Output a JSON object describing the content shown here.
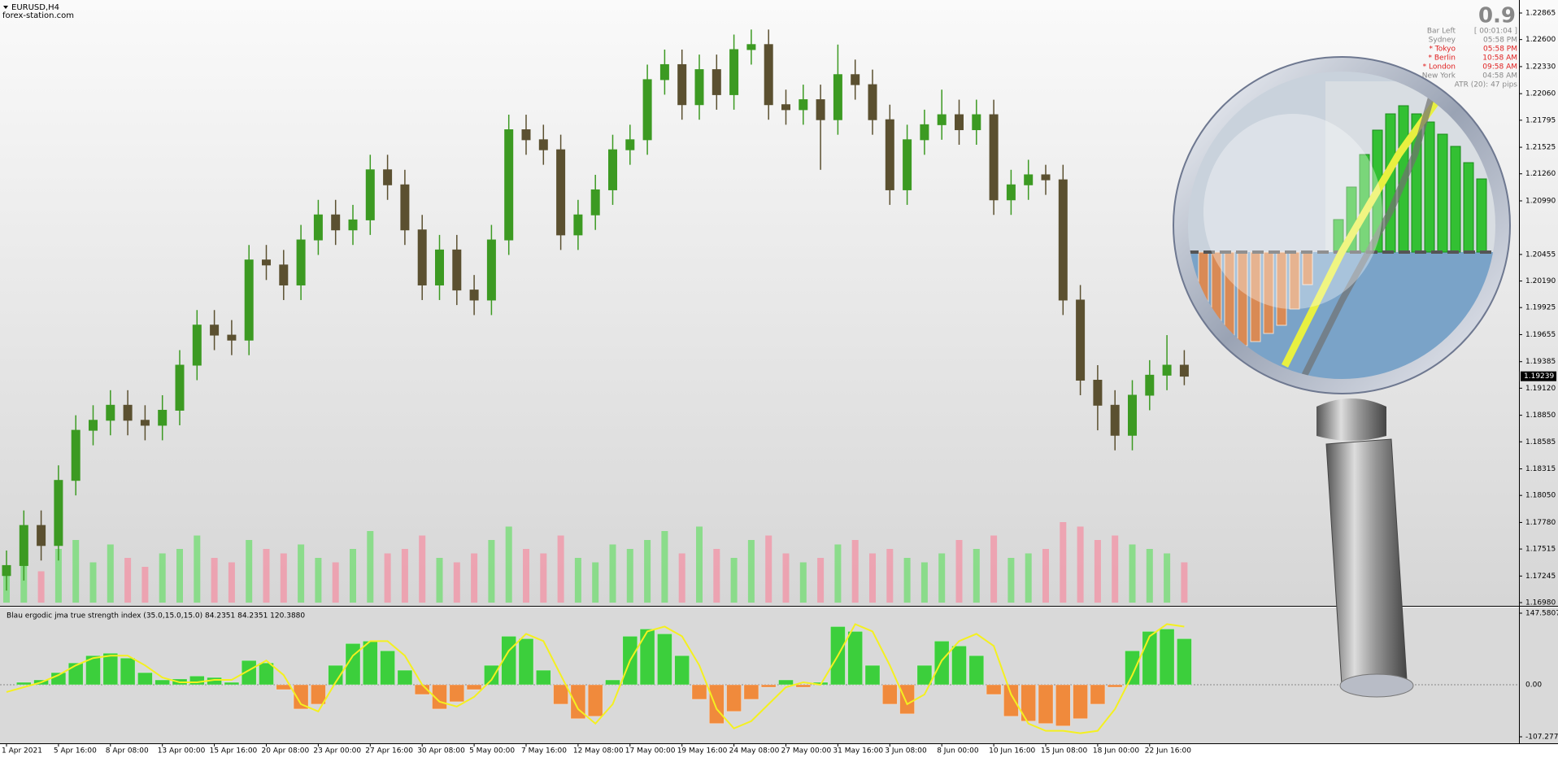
{
  "header": {
    "symbol": "EURUSD,H4",
    "source": "forex-station.com"
  },
  "info_panel": {
    "spread": "0.9",
    "rows": [
      [
        "Bar Left",
        "[ 00:01:04 ]"
      ],
      [
        "Sydney",
        "05:58 PM"
      ],
      [
        "* Tokyo",
        "05:58 PM"
      ],
      [
        "* Berlin",
        "10:58 AM"
      ],
      [
        "* London",
        "09:58 AM"
      ],
      [
        "New York",
        "04:58 AM"
      ]
    ],
    "atr": "ATR (20): 47 pips"
  },
  "chart_data": [
    {
      "type": "candlestick",
      "categories": [
        "1 Apr 2021",
        null,
        null,
        "5 Apr 16:00",
        null,
        null,
        "8 Apr 08:00",
        null,
        null,
        "13 Apr 00:00",
        null,
        null,
        "15 Apr 16:00",
        null,
        null,
        "20 Apr 08:00",
        null,
        null,
        "23 Apr 00:00",
        null,
        null,
        "27 Apr 16:00",
        null,
        null,
        "30 Apr 08:00",
        null,
        null,
        "5 May 00:00",
        null,
        null,
        "7 May 16:00",
        null,
        null,
        "12 May 08:00",
        null,
        null,
        "17 May 00:00",
        null,
        null,
        "19 May 16:00",
        null,
        null,
        "24 May 08:00",
        null,
        null,
        "27 May 00:00",
        null,
        null,
        "31 May 16:00",
        null,
        null,
        "3 Jun 08:00",
        null,
        null,
        "8 Jun 00:00",
        null,
        null,
        "10 Jun 16:00",
        null,
        null,
        "15 Jun 08:00",
        null,
        null,
        "18 Jun 00:00",
        null,
        null,
        "22 Jun 16:00",
        null,
        null
      ],
      "open": [
        1.1725,
        1.1735,
        1.1775,
        1.1755,
        1.182,
        1.187,
        1.188,
        1.1895,
        1.188,
        1.1875,
        1.189,
        1.1935,
        1.1975,
        1.1965,
        1.196,
        1.204,
        1.2035,
        1.2015,
        1.206,
        1.2085,
        1.207,
        1.208,
        1.213,
        1.2115,
        1.207,
        1.2015,
        1.205,
        1.201,
        1.2,
        1.206,
        1.217,
        1.216,
        1.215,
        1.2065,
        1.2085,
        1.211,
        1.215,
        1.216,
        1.222,
        1.2235,
        1.2195,
        1.223,
        1.2205,
        1.225,
        1.2255,
        1.2195,
        1.219,
        1.22,
        1.218,
        1.2225,
        1.2215,
        1.218,
        1.211,
        1.216,
        1.2175,
        1.2185,
        1.217,
        1.2185,
        1.21,
        1.2115,
        1.2125,
        1.212,
        1.2,
        1.192,
        1.1895,
        1.1865,
        1.1905,
        1.1925,
        1.1935
      ],
      "high": [
        1.175,
        1.179,
        1.179,
        1.1835,
        1.1885,
        1.1895,
        1.191,
        1.191,
        1.1895,
        1.1905,
        1.195,
        1.199,
        1.199,
        1.198,
        1.2055,
        1.2055,
        1.205,
        1.2075,
        1.21,
        1.21,
        1.2095,
        1.2145,
        1.2145,
        1.213,
        1.2085,
        1.2065,
        1.2065,
        1.2025,
        1.2075,
        1.2185,
        1.2185,
        1.2175,
        1.2165,
        1.21,
        1.2125,
        1.2165,
        1.2175,
        1.2235,
        1.225,
        1.225,
        1.2245,
        1.2245,
        1.2265,
        1.227,
        1.227,
        1.221,
        1.2215,
        1.2215,
        1.2255,
        1.224,
        1.223,
        1.2195,
        1.2175,
        1.219,
        1.221,
        1.22,
        1.22,
        1.22,
        1.213,
        1.214,
        1.2135,
        1.2135,
        1.2015,
        1.1935,
        1.191,
        1.192,
        1.194,
        1.1965,
        1.195
      ],
      "low": [
        1.171,
        1.172,
        1.174,
        1.174,
        1.1805,
        1.1855,
        1.1865,
        1.1865,
        1.186,
        1.186,
        1.1875,
        1.192,
        1.195,
        1.1945,
        1.1945,
        1.202,
        1.2,
        1.2,
        1.2045,
        1.2055,
        1.2055,
        1.2065,
        1.21,
        1.2055,
        1.2,
        1.2,
        1.1995,
        1.1985,
        1.1985,
        1.2045,
        1.2145,
        1.2135,
        1.205,
        1.205,
        1.207,
        1.2095,
        1.2135,
        1.2145,
        1.2205,
        1.218,
        1.218,
        1.219,
        1.219,
        1.2235,
        1.218,
        1.2175,
        1.2175,
        1.213,
        1.2165,
        1.22,
        1.2165,
        1.2095,
        1.2095,
        1.2145,
        1.216,
        1.2155,
        1.2155,
        1.2085,
        1.2085,
        1.21,
        1.2105,
        1.1985,
        1.1905,
        1.187,
        1.185,
        1.185,
        1.189,
        1.191,
        1.1915
      ],
      "close": [
        1.1735,
        1.1775,
        1.1755,
        1.182,
        1.187,
        1.188,
        1.1895,
        1.188,
        1.1875,
        1.189,
        1.1935,
        1.1975,
        1.1965,
        1.196,
        1.204,
        1.2035,
        1.2015,
        1.206,
        1.2085,
        1.207,
        1.208,
        1.213,
        1.2115,
        1.207,
        1.2015,
        1.205,
        1.201,
        1.2,
        1.206,
        1.217,
        1.216,
        1.215,
        1.2065,
        1.2085,
        1.211,
        1.215,
        1.216,
        1.222,
        1.2235,
        1.2195,
        1.223,
        1.2205,
        1.225,
        1.2255,
        1.2195,
        1.219,
        1.22,
        1.218,
        1.2225,
        1.2215,
        1.218,
        1.211,
        1.216,
        1.2175,
        1.2185,
        1.217,
        1.2185,
        1.21,
        1.2115,
        1.2125,
        1.212,
        1.2,
        1.192,
        1.1895,
        1.1865,
        1.1905,
        1.1925,
        1.1935,
        1.1924
      ],
      "volume": [
        40,
        55,
        35,
        60,
        70,
        45,
        65,
        50,
        40,
        55,
        60,
        75,
        50,
        45,
        70,
        60,
        55,
        65,
        50,
        45,
        60,
        80,
        55,
        60,
        75,
        50,
        45,
        55,
        70,
        85,
        60,
        55,
        75,
        50,
        45,
        65,
        60,
        70,
        80,
        55,
        85,
        60,
        50,
        70,
        75,
        55,
        45,
        50,
        65,
        70,
        55,
        60,
        50,
        45,
        55,
        70,
        60,
        75,
        50,
        55,
        60,
        90,
        85,
        70,
        75,
        65,
        60,
        55,
        45
      ],
      "up_color": "#3c9a22",
      "down_color": "#5b5030",
      "volume_up_color": "#7ddc7d",
      "volume_down_color": "#f09aaa",
      "last_price": 1.19239,
      "ylim": [
        1.1698,
        1.22865
      ],
      "yticks": [
        1.22865,
        {
          "value": 1.226,
          "label": "1.22600"
        },
        {
          "value": 1.2233,
          "label": "1.22330"
        },
        {
          "value": 1.2206,
          "label": "1.22060"
        },
        1.21795,
        1.21525,
        {
          "value": 1.2126,
          "label": "1.21260"
        },
        {
          "value": 1.2099,
          "label": "1.20990"
        },
        1.20455,
        {
          "value": 1.2019,
          "label": "1.20190"
        },
        1.19925,
        1.19655,
        1.19385,
        {
          "value": 1.1912,
          "label": "1.19120"
        },
        {
          "value": 1.1885,
          "label": "1.18850"
        },
        1.18585,
        1.18315,
        {
          "value": 1.1805,
          "label": "1.18050"
        },
        {
          "value": 1.1778,
          "label": "1.17780"
        },
        1.17515,
        1.17245,
        {
          "value": 1.1698,
          "label": "1.16980"
        }
      ]
    },
    {
      "type": "histogram-line",
      "title": "Blau ergodic jma true strength index (35.0,15.0,15.0) 84.2351 84.2351 120.3880",
      "values": [
        0,
        5,
        10,
        25,
        45,
        60,
        65,
        55,
        25,
        10,
        12,
        18,
        15,
        5,
        50,
        45,
        -10,
        -50,
        -40,
        40,
        85,
        90,
        70,
        30,
        -20,
        -50,
        -35,
        -10,
        40,
        100,
        95,
        30,
        -40,
        -70,
        -65,
        10,
        100,
        115,
        105,
        60,
        -30,
        -80,
        -55,
        -30,
        -5,
        10,
        -5,
        5,
        120,
        110,
        40,
        -40,
        -60,
        40,
        90,
        80,
        60,
        -20,
        -65,
        -75,
        -80,
        -85,
        -70,
        -40,
        -5,
        70,
        110,
        115,
        95
      ],
      "line_values": [
        -15,
        -5,
        5,
        20,
        40,
        55,
        60,
        60,
        40,
        15,
        5,
        5,
        10,
        10,
        30,
        50,
        20,
        -40,
        -55,
        5,
        60,
        90,
        90,
        60,
        0,
        -35,
        -45,
        -25,
        10,
        70,
        105,
        90,
        20,
        -50,
        -80,
        -40,
        50,
        110,
        120,
        100,
        40,
        -50,
        -90,
        -75,
        -40,
        -5,
        5,
        0,
        60,
        125,
        110,
        40,
        -40,
        -20,
        50,
        90,
        105,
        80,
        -20,
        -80,
        -95,
        -95,
        -100,
        -95,
        -50,
        20,
        100,
        125,
        120
      ],
      "positive_color": "#3ccf3c",
      "negative_color": "#f08a3c",
      "line_color": "#f4f020",
      "ylim": [
        -107.2771,
        147.5807
      ],
      "yticks": [
        147.5807,
        {
          "value": 0,
          "label": "0.00"
        },
        -107.2771
      ]
    }
  ]
}
